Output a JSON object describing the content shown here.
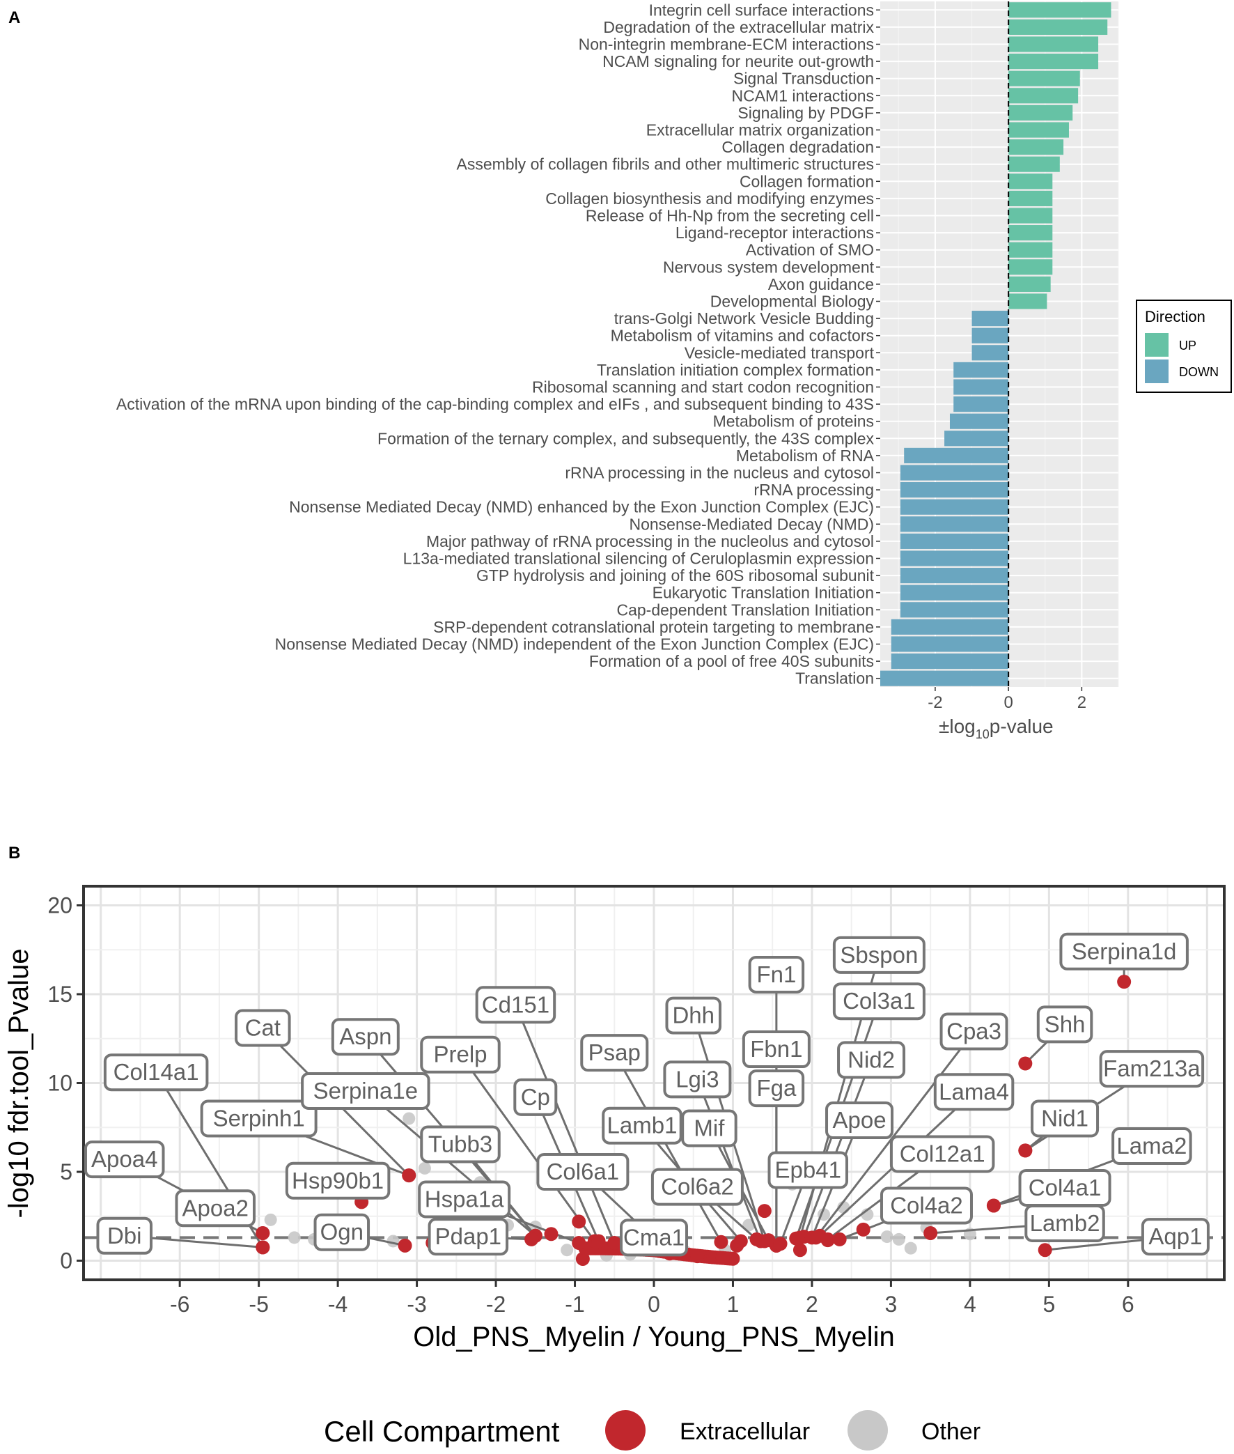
{
  "chart_data": [
    {
      "panel": "A",
      "type": "bar",
      "orientation": "horizontal",
      "xlabel": "±log",
      "xlabel_subscript": "10",
      "xlabel_suffix": "p-value",
      "xlim": [
        -3.5,
        3.0
      ],
      "xticks": [
        -2,
        0,
        2
      ],
      "xtick_labels": [
        "-2",
        "0",
        "2"
      ],
      "grid": true,
      "reference_line": 0,
      "legend": {
        "title": "Direction",
        "position": "right",
        "items": [
          {
            "label": "UP",
            "color": "#66c2a5"
          },
          {
            "label": "DOWN",
            "color": "#6aa6c0"
          }
        ]
      },
      "categories": [
        "Integrin cell surface interactions",
        "Degradation of the extracellular matrix",
        "Non-integrin membrane-ECM interactions",
        "NCAM signaling for neurite out-growth",
        "Signal Transduction",
        "NCAM1 interactions",
        "Signaling by PDGF",
        "Extracellular matrix organization",
        "Collagen degradation",
        "Assembly of collagen fibrils and other multimeric structures",
        "Collagen formation",
        "Collagen biosynthesis and modifying enzymes",
        "Release of Hh-Np from the secreting cell",
        "Ligand-receptor interactions",
        "Activation of SMO",
        "Nervous system development",
        "Axon guidance",
        "Developmental Biology",
        "trans-Golgi Network Vesicle Budding",
        "Metabolism of vitamins and cofactors",
        "Vesicle-mediated transport",
        "Translation initiation complex formation",
        "Ribosomal scanning and start codon recognition",
        "Activation of the mRNA upon binding of the cap-binding complex and eIFs , and subsequent binding to 43S",
        "Metabolism of proteins",
        "Formation of the ternary complex, and subsequently, the 43S complex",
        "Metabolism of RNA",
        "rRNA processing in the nucleus and cytosol",
        "rRNA processing",
        "Nonsense Mediated Decay (NMD) enhanced by the Exon Junction Complex (EJC)",
        "Nonsense-Mediated Decay (NMD)",
        "Major pathway of rRNA processing in the nucleolus and cytosol",
        "L13a-mediated translational silencing of Ceruloplasmin expression",
        "GTP hydrolysis and joining of the 60S ribosomal subunit",
        "Eukaryotic Translation Initiation",
        "Cap-dependent Translation Initiation",
        "SRP-dependent cotranslational protein targeting to membrane",
        "Nonsense Mediated Decay (NMD) independent of the Exon Junction Complex (EJC)",
        "Formation of a pool of free 40S subunits",
        "Translation"
      ],
      "values": [
        2.8,
        2.7,
        2.45,
        2.45,
        1.95,
        1.9,
        1.75,
        1.65,
        1.5,
        1.4,
        1.2,
        1.2,
        1.2,
        1.2,
        1.2,
        1.2,
        1.15,
        1.05,
        -1.0,
        -1.0,
        -1.0,
        -1.5,
        -1.5,
        -1.5,
        -1.6,
        -1.75,
        -2.85,
        -2.95,
        -2.95,
        -2.95,
        -2.95,
        -2.95,
        -2.95,
        -2.95,
        -2.95,
        -2.95,
        -3.2,
        -3.2,
        -3.2,
        -3.5
      ],
      "directions": [
        "UP",
        "UP",
        "UP",
        "UP",
        "UP",
        "UP",
        "UP",
        "UP",
        "UP",
        "UP",
        "UP",
        "UP",
        "UP",
        "UP",
        "UP",
        "UP",
        "UP",
        "UP",
        "DOWN",
        "DOWN",
        "DOWN",
        "DOWN",
        "DOWN",
        "DOWN",
        "DOWN",
        "DOWN",
        "DOWN",
        "DOWN",
        "DOWN",
        "DOWN",
        "DOWN",
        "DOWN",
        "DOWN",
        "DOWN",
        "DOWN",
        "DOWN",
        "DOWN",
        "DOWN",
        "DOWN",
        "DOWN"
      ]
    },
    {
      "panel": "B",
      "type": "scatter",
      "subtype": "volcano",
      "xlabel": "Old_PNS_Myelin / Young_PNS_Myelin",
      "ylabel": "-log10 fdr.tool_Pvalue",
      "xlim": [
        -7.2,
        7.2
      ],
      "ylim": [
        -1,
        21
      ],
      "xticks": [
        -6,
        -5,
        -4,
        -3,
        -2,
        -1,
        0,
        1,
        2,
        3,
        4,
        5,
        6
      ],
      "yticks": [
        0,
        5,
        10,
        15,
        20
      ],
      "threshold_y": 1.3,
      "legend": {
        "title": "Cell Compartment",
        "position": "bottom",
        "items": [
          {
            "label": "Extracellular",
            "color": "#c1272d"
          },
          {
            "label": "Other",
            "color": "#c8c8c8"
          }
        ]
      },
      "labeled_points": [
        {
          "gene": "Dbi",
          "x": -4.95,
          "y": 0.75,
          "label_x": -6.7,
          "label_y": 1.4
        },
        {
          "gene": "Apoa2",
          "x": -4.95,
          "y": 1.55,
          "label_x": -5.55,
          "label_y": 2.95
        },
        {
          "gene": "Apoa4",
          "x": -4.95,
          "y": 1.55,
          "label_x": -6.7,
          "label_y": 5.7
        },
        {
          "gene": "Col14a1",
          "x": -4.95,
          "y": 0.75,
          "label_x": -6.3,
          "label_y": 10.6
        },
        {
          "gene": "Serpinh1",
          "x": -3.1,
          "y": 4.8,
          "label_x": -5.0,
          "label_y": 8.0
        },
        {
          "gene": "Cat",
          "x": -3.1,
          "y": 4.8,
          "label_x": -4.95,
          "label_y": 13.1
        },
        {
          "gene": "Hsp90b1",
          "x": -3.7,
          "y": 3.3,
          "label_x": -4.0,
          "label_y": 4.5
        },
        {
          "gene": "Ogn",
          "x": -3.15,
          "y": 0.85,
          "label_x": -3.95,
          "label_y": 1.6
        },
        {
          "gene": "Aspn",
          "x": -1.5,
          "y": 1.4,
          "label_x": -3.65,
          "label_y": 12.6
        },
        {
          "gene": "Serpina1e",
          "x": -1.5,
          "y": 1.4,
          "label_x": -3.65,
          "label_y": 9.55
        },
        {
          "gene": "Tubb3",
          "x": -1.5,
          "y": 1.4,
          "label_x": -2.45,
          "label_y": 6.55
        },
        {
          "gene": "Hspa1a",
          "x": -0.95,
          "y": 1.0,
          "label_x": -2.4,
          "label_y": 3.45
        },
        {
          "gene": "Pdap1",
          "x": -1.55,
          "y": 1.2,
          "label_x": -2.35,
          "label_y": 1.35
        },
        {
          "gene": "Prelp",
          "x": -0.75,
          "y": 1.1,
          "label_x": -2.45,
          "label_y": 11.6
        },
        {
          "gene": "Cp",
          "x": -0.7,
          "y": 1.1,
          "label_x": -1.5,
          "label_y": 9.2
        },
        {
          "gene": "Cd151",
          "x": -0.5,
          "y": 1.0,
          "label_x": -1.75,
          "label_y": 14.4
        },
        {
          "gene": "Col6a1",
          "x": 0.2,
          "y": 0.4,
          "label_x": -0.9,
          "label_y": 5.0
        },
        {
          "gene": "Psap",
          "x": 0.85,
          "y": 1.05,
          "label_x": -0.5,
          "label_y": 11.7
        },
        {
          "gene": "Lamb1",
          "x": 1.1,
          "y": 1.1,
          "label_x": -0.15,
          "label_y": 7.6
        },
        {
          "gene": "Col6a2",
          "x": 1.3,
          "y": 1.2,
          "label_x": 0.55,
          "label_y": 4.15
        },
        {
          "gene": "Cma1",
          "x": 0.55,
          "y": 0.25,
          "label_x": 0.0,
          "label_y": 1.3
        },
        {
          "gene": "Dhh",
          "x": 1.4,
          "y": 1.1,
          "label_x": 0.5,
          "label_y": 13.8
        },
        {
          "gene": "Lgi3",
          "x": 1.35,
          "y": 1.1,
          "label_x": 0.55,
          "label_y": 10.2
        },
        {
          "gene": "Mif",
          "x": 1.45,
          "y": 1.15,
          "label_x": 0.7,
          "label_y": 7.45
        },
        {
          "gene": "Fn1",
          "x": 1.55,
          "y": 0.85,
          "label_x": 1.55,
          "label_y": 16.1
        },
        {
          "gene": "Fbn1",
          "x": 1.55,
          "y": 0.85,
          "label_x": 1.55,
          "label_y": 11.9
        },
        {
          "gene": "Fga",
          "x": 1.55,
          "y": 0.85,
          "label_x": 1.55,
          "label_y": 9.7
        },
        {
          "gene": "Epb41",
          "x": 1.6,
          "y": 0.95,
          "label_x": 1.95,
          "label_y": 5.1
        },
        {
          "gene": "Sbspon",
          "x": 1.85,
          "y": 1.3,
          "label_x": 2.85,
          "label_y": 17.2
        },
        {
          "gene": "Col3a1",
          "x": 1.8,
          "y": 1.25,
          "label_x": 2.85,
          "label_y": 14.6
        },
        {
          "gene": "Nid2",
          "x": 1.9,
          "y": 1.35,
          "label_x": 2.75,
          "label_y": 11.3
        },
        {
          "gene": "Apoe",
          "x": 2.0,
          "y": 1.3,
          "label_x": 2.6,
          "label_y": 7.9
        },
        {
          "gene": "Cpa3",
          "x": 2.05,
          "y": 1.3,
          "label_x": 4.05,
          "label_y": 12.9
        },
        {
          "gene": "Lama4",
          "x": 2.1,
          "y": 1.4,
          "label_x": 4.05,
          "label_y": 9.5
        },
        {
          "gene": "Col12a1",
          "x": 2.2,
          "y": 1.2,
          "label_x": 3.65,
          "label_y": 6.0
        },
        {
          "gene": "Col4a2",
          "x": 2.35,
          "y": 1.2,
          "label_x": 3.45,
          "label_y": 3.1
        },
        {
          "gene": "Shh",
          "x": 4.7,
          "y": 11.1,
          "label_x": 5.2,
          "label_y": 13.3
        },
        {
          "gene": "Serpina1d",
          "x": 5.95,
          "y": 15.7,
          "label_x": 5.95,
          "label_y": 17.4
        },
        {
          "gene": "Fam213a",
          "x": 4.7,
          "y": 6.2,
          "label_x": 6.3,
          "label_y": 10.8
        },
        {
          "gene": "Nid1",
          "x": 4.7,
          "y": 6.2,
          "label_x": 5.2,
          "label_y": 8.0
        },
        {
          "gene": "Lama2",
          "x": 4.3,
          "y": 3.1,
          "label_x": 6.3,
          "label_y": 6.45
        },
        {
          "gene": "Col4a1",
          "x": 4.3,
          "y": 3.1,
          "label_x": 5.2,
          "label_y": 4.1
        },
        {
          "gene": "Lamb2",
          "x": 3.5,
          "y": 1.55,
          "label_x": 5.2,
          "label_y": 2.1
        },
        {
          "gene": "Aqp1",
          "x": 4.95,
          "y": 0.6,
          "label_x": 6.6,
          "label_y": 1.35
        }
      ],
      "extra_extracellular_points": [
        [
          -0.95,
          2.2
        ],
        [
          1.4,
          2.8
        ],
        [
          2.65,
          1.75
        ],
        [
          -2.8,
          1.0
        ],
        [
          -1.3,
          1.5
        ],
        [
          1.05,
          0.85
        ],
        [
          1.85,
          0.6
        ],
        [
          2.2,
          1.15
        ]
      ],
      "other_points": [
        [
          -4.85,
          2.3
        ],
        [
          -4.55,
          1.3
        ],
        [
          -4.3,
          1.2
        ],
        [
          -3.1,
          8.0
        ],
        [
          -2.75,
          7.0
        ],
        [
          -2.9,
          5.2
        ],
        [
          -2.2,
          4.4
        ],
        [
          -1.85,
          2.0
        ],
        [
          -1.5,
          1.9
        ],
        [
          -2.5,
          1.4
        ],
        [
          -3.3,
          1.1
        ],
        [
          -0.6,
          0.3
        ],
        [
          -0.3,
          0.35
        ],
        [
          0.4,
          0.5
        ],
        [
          0.9,
          0.6
        ],
        [
          2.4,
          3.0
        ],
        [
          2.7,
          2.6
        ],
        [
          2.85,
          8.2
        ],
        [
          1.95,
          5.4
        ],
        [
          1.75,
          4.3
        ],
        [
          3.1,
          1.2
        ],
        [
          3.25,
          0.7
        ],
        [
          3.45,
          1.85
        ],
        [
          2.95,
          1.35
        ],
        [
          4.0,
          1.5
        ],
        [
          1.2,
          2.0
        ],
        [
          -1.1,
          0.6
        ],
        [
          0.0,
          0.8
        ],
        [
          2.15,
          2.6
        ],
        [
          -0.15,
          1.0
        ]
      ]
    }
  ],
  "figure": {
    "panel_a_letter": "A",
    "panel_b_letter": "B"
  }
}
